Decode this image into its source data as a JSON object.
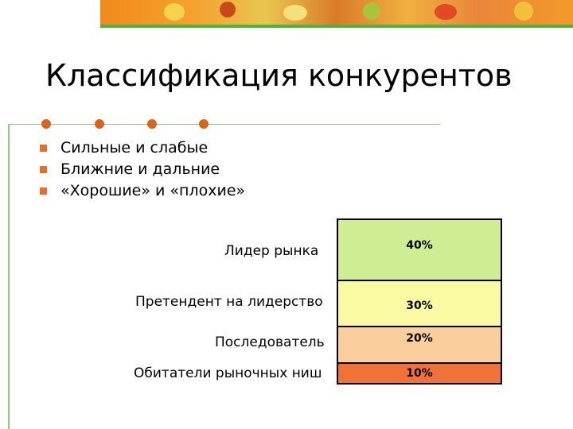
{
  "colors": {
    "banner": "#f08a1c",
    "green_rule": "#4db33d",
    "accent": "#d8641e",
    "tier_leader": "#cfee93",
    "tier_challenger": "#fafaa3",
    "tier_follower": "#fbcf9d",
    "tier_niche": "#f07238"
  },
  "slide": {
    "title": "Классификация конкурентов",
    "bullets": [
      "Сильные и слабые",
      "Ближние и дальние",
      "«Хорошие» и «плохие»"
    ]
  },
  "tiers": [
    {
      "label": "Лидер рынка",
      "value": "40%"
    },
    {
      "label": "Претендент на лидерство",
      "value": "30%"
    },
    {
      "label": "Последователь",
      "value": "20%"
    },
    {
      "label": "Обитатели рыночных ниш",
      "value": "10%"
    }
  ]
}
